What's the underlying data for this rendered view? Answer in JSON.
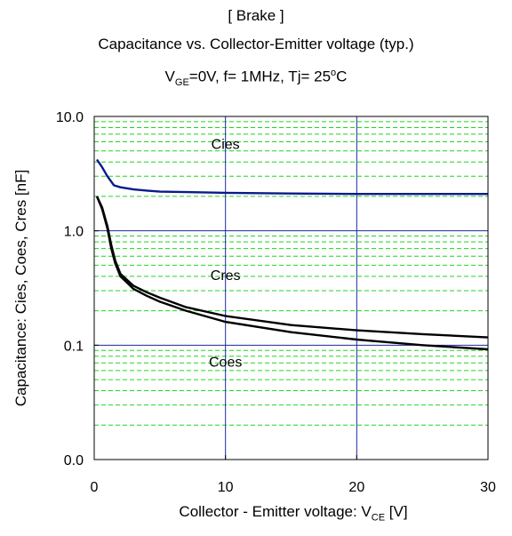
{
  "chart_data": {
    "type": "line",
    "title": "[ Brake ]",
    "subtitle": "Capacitance  vs.  Collector-Emitter voltage  (typ.)",
    "conditions": {
      "vge_prefix": "V",
      "vge_sub": "GE",
      "vge_rest": "=0V,  f= 1MHz,  Tj= 25",
      "deg": "o",
      "unit": "C"
    },
    "xlabel": {
      "prefix": "Collector - Emitter voltage: V",
      "sub": "CE",
      "suffix": " [V]"
    },
    "ylabel": "Capacitance: Cies, Coes, Cres [nF]",
    "x_ticks": [
      0,
      10,
      20,
      30
    ],
    "x_tick_labels": [
      "0",
      "10",
      "20",
      "30"
    ],
    "y_ticks": [
      0.01,
      0.1,
      1,
      10
    ],
    "y_tick_labels": [
      "0.0",
      "0.1",
      "1.0",
      "10.0"
    ],
    "xlim": [
      0,
      30
    ],
    "ylim": [
      0.01,
      10
    ],
    "yscale": "log",
    "grid": {
      "major": true,
      "minor": true
    },
    "colors": {
      "cies": "#0a1a8c",
      "cres": "#000000",
      "coes": "#000000",
      "major_grid": "#1a2a9e",
      "minor_grid": "#1fd61f"
    },
    "series": [
      {
        "name": "Cies",
        "x": [
          0.2,
          0.6,
          1.0,
          1.5,
          2.0,
          3.0,
          4.0,
          5.0,
          7.0,
          10.0,
          15.0,
          20.0,
          25.0,
          30.0
        ],
        "y": [
          4.2,
          3.6,
          3.0,
          2.5,
          2.4,
          2.3,
          2.25,
          2.2,
          2.18,
          2.15,
          2.12,
          2.1,
          2.1,
          2.1
        ]
      },
      {
        "name": "Cres",
        "x": [
          0.2,
          0.6,
          1.0,
          1.3,
          1.6,
          2.0,
          3.0,
          4.0,
          5.0,
          7.0,
          10.0,
          15.0,
          20.0,
          25.0,
          30.0
        ],
        "y": [
          2.0,
          1.6,
          1.1,
          0.75,
          0.55,
          0.42,
          0.33,
          0.29,
          0.26,
          0.215,
          0.18,
          0.15,
          0.135,
          0.125,
          0.117
        ]
      },
      {
        "name": "Coes",
        "x": [
          0.2,
          0.6,
          1.0,
          1.3,
          1.6,
          2.0,
          3.0,
          4.0,
          5.0,
          7.0,
          10.0,
          15.0,
          20.0,
          25.0,
          30.0
        ],
        "y": [
          2.0,
          1.55,
          1.05,
          0.7,
          0.52,
          0.4,
          0.31,
          0.27,
          0.24,
          0.2,
          0.16,
          0.13,
          0.112,
          0.1,
          0.092
        ]
      }
    ],
    "annotations": [
      "Cies",
      "Cres",
      "Coes"
    ],
    "annotation_x": [
      10,
      10,
      10
    ],
    "annotation_y": [
      5.2,
      0.37,
      0.065
    ]
  }
}
